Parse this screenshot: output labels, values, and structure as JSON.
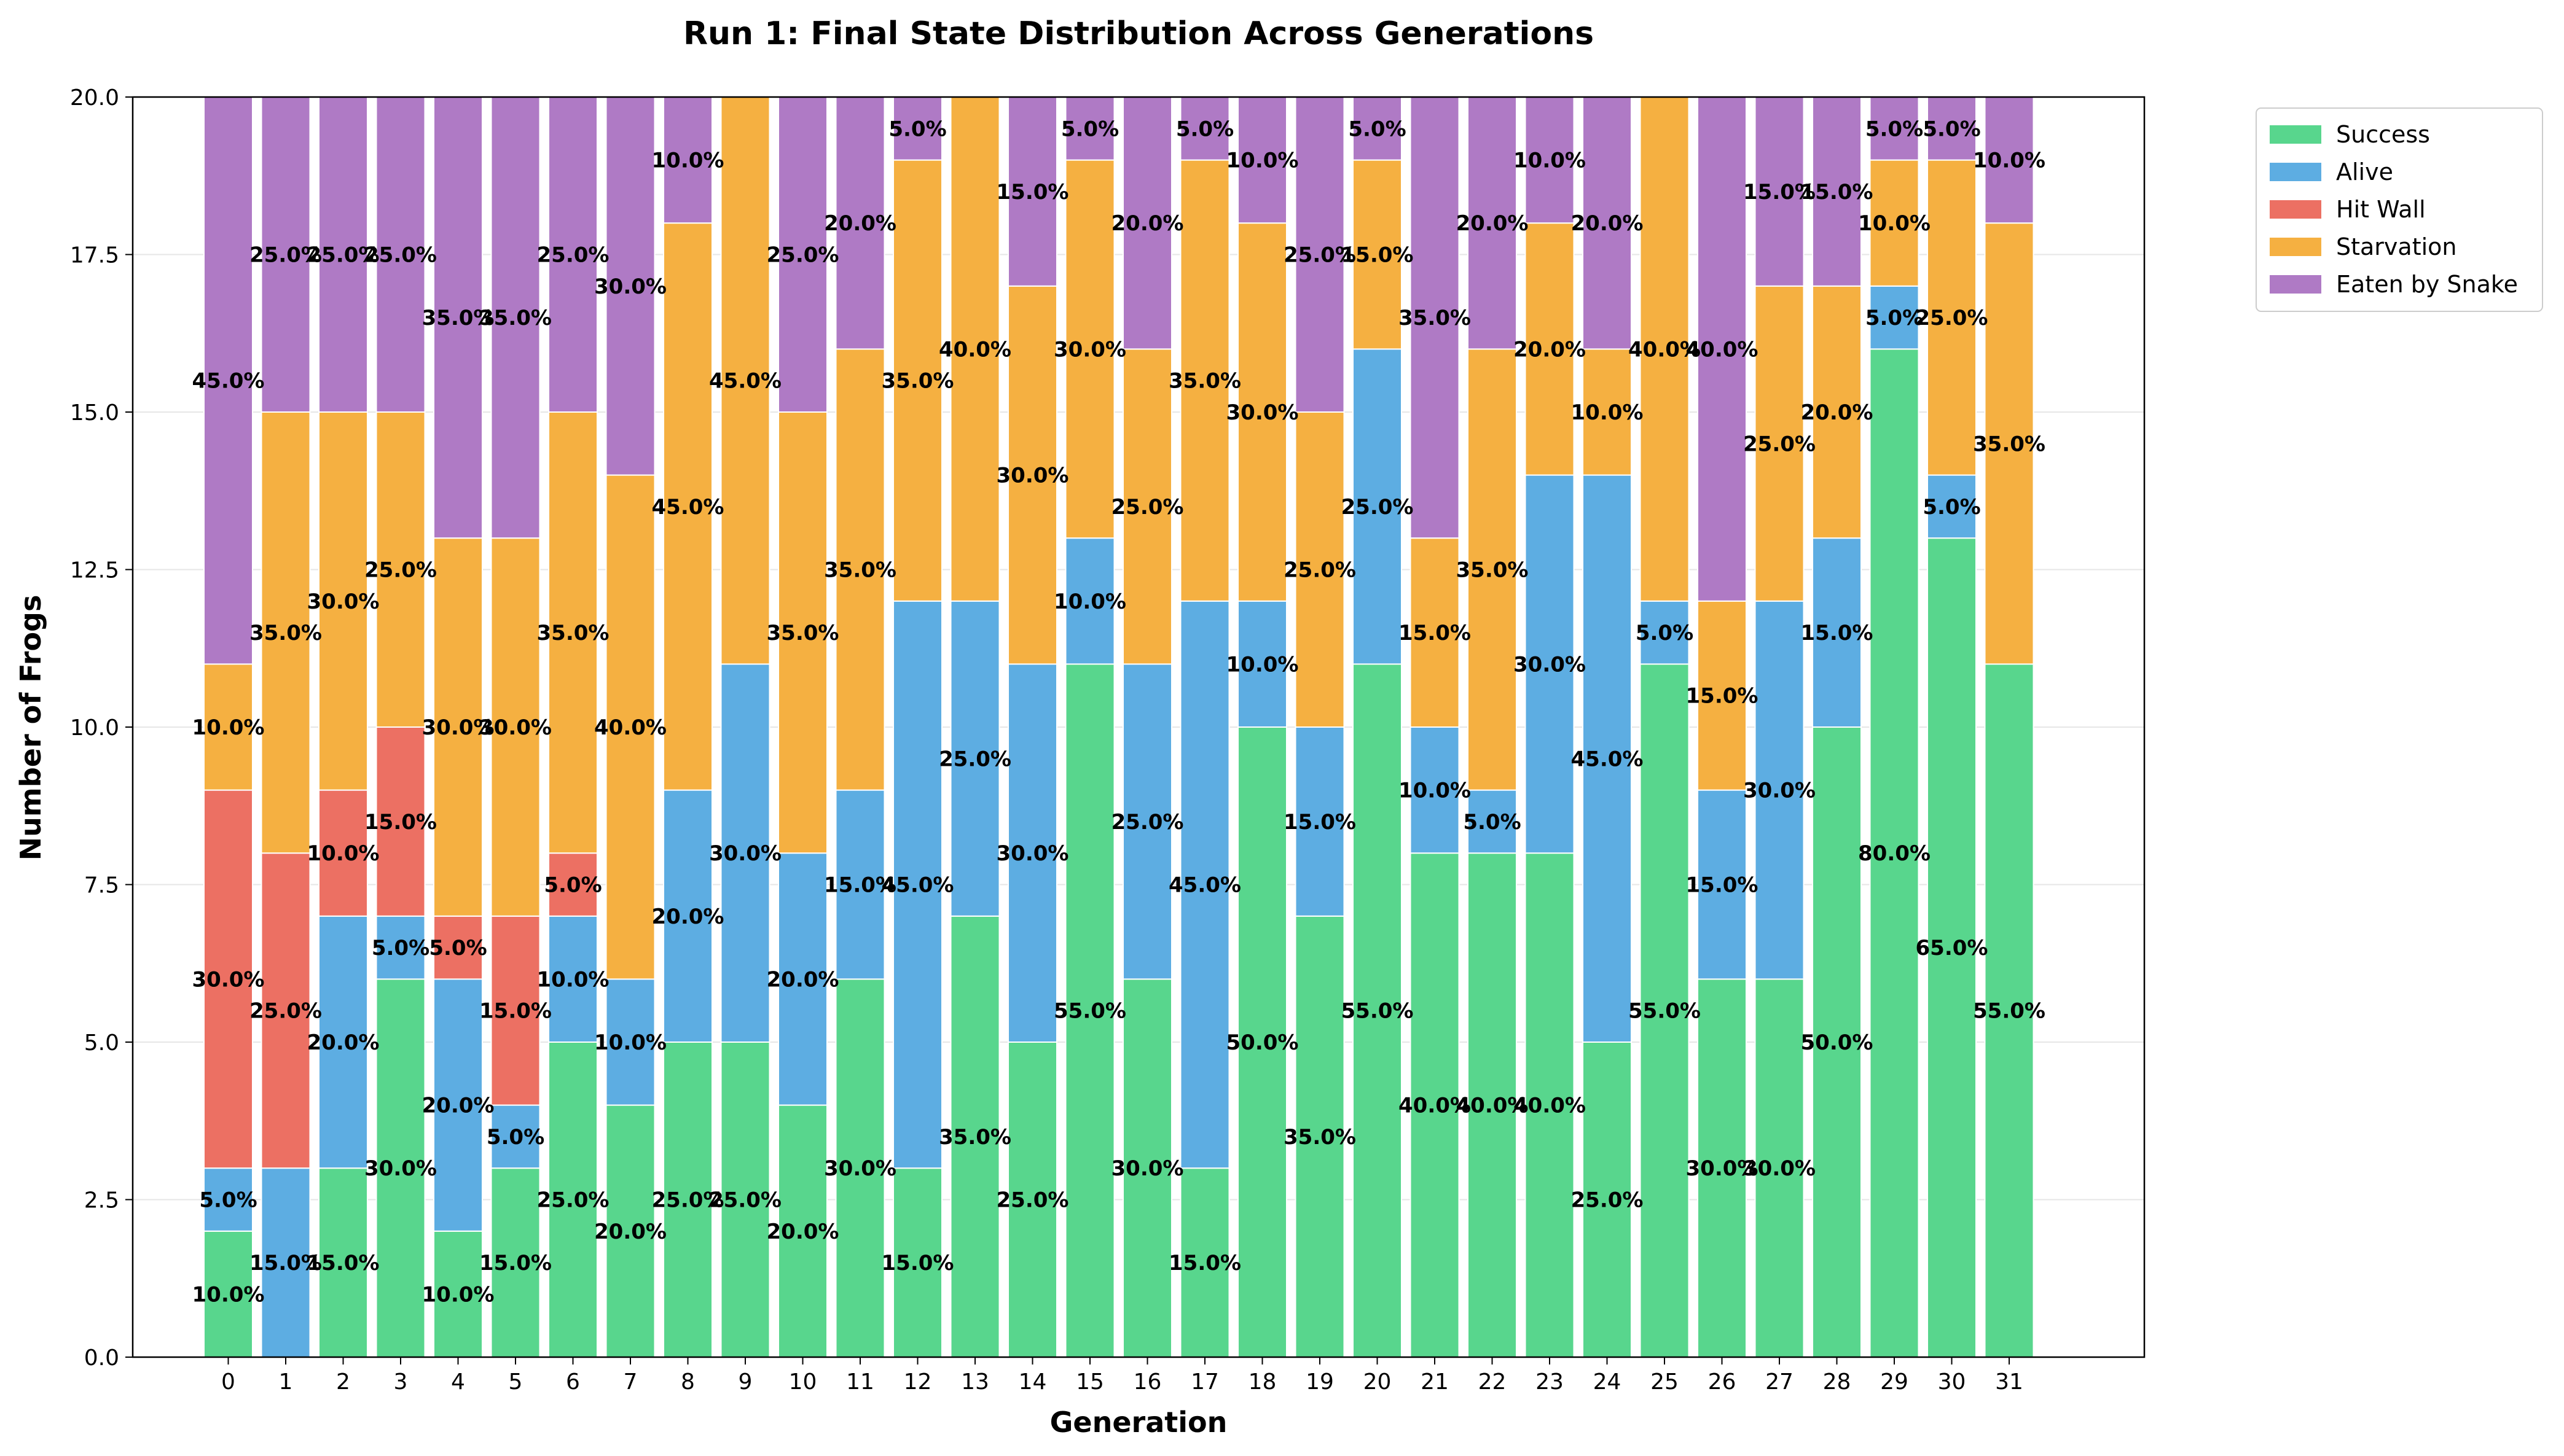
{
  "chart_data": {
    "type": "bar",
    "stacked": true,
    "title": "Run 1: Final State Distribution Across Generations",
    "xlabel": "Generation",
    "ylabel": "Number of Frogs",
    "ylim": [
      0,
      20
    ],
    "yticks": [
      "0.0",
      "2.5",
      "5.0",
      "7.5",
      "10.0",
      "12.5",
      "15.0",
      "17.5",
      "20.0"
    ],
    "ytick_values": [
      0,
      2.5,
      5,
      7.5,
      10,
      12.5,
      15,
      17.5,
      20
    ],
    "grid": "horizontal",
    "legend_position": "outside-top-right",
    "categories": [
      "0",
      "1",
      "2",
      "3",
      "4",
      "5",
      "6",
      "7",
      "8",
      "9",
      "10",
      "11",
      "12",
      "13",
      "14",
      "15",
      "16",
      "17",
      "18",
      "19",
      "20",
      "21",
      "22",
      "23",
      "24",
      "25",
      "26",
      "27",
      "28",
      "29",
      "30",
      "31"
    ],
    "series": [
      {
        "name": "Success",
        "color": "#58d68d",
        "values": [
          2,
          0,
          3,
          6,
          2,
          3,
          5,
          4,
          5,
          5,
          4,
          6,
          3,
          7,
          5,
          11,
          6,
          3,
          10,
          7,
          11,
          8,
          8,
          8,
          5,
          11,
          6,
          6,
          10,
          16,
          13,
          11
        ],
        "labels": [
          "10.0%",
          "",
          "15.0%",
          "30.0%",
          "10.0%",
          "15.0%",
          "25.0%",
          "20.0%",
          "25.0%",
          "25.0%",
          "20.0%",
          "30.0%",
          "15.0%",
          "35.0%",
          "25.0%",
          "55.0%",
          "30.0%",
          "15.0%",
          "50.0%",
          "35.0%",
          "55.0%",
          "40.0%",
          "40.0%",
          "40.0%",
          "25.0%",
          "55.0%",
          "30.0%",
          "30.0%",
          "50.0%",
          "80.0%",
          "65.0%",
          "55.0%"
        ]
      },
      {
        "name": "Alive",
        "color": "#5dade2",
        "values": [
          1,
          3,
          4,
          1,
          4,
          1,
          2,
          2,
          4,
          6,
          4,
          3,
          9,
          5,
          6,
          2,
          5,
          9,
          2,
          3,
          5,
          2,
          1,
          6,
          9,
          1,
          3,
          6,
          3,
          1,
          1,
          0
        ],
        "labels": [
          "5.0%",
          "15.0%",
          "20.0%",
          "5.0%",
          "20.0%",
          "5.0%",
          "10.0%",
          "10.0%",
          "20.0%",
          "30.0%",
          "20.0%",
          "15.0%",
          "45.0%",
          "25.0%",
          "30.0%",
          "10.0%",
          "25.0%",
          "45.0%",
          "10.0%",
          "15.0%",
          "25.0%",
          "10.0%",
          "5.0%",
          "30.0%",
          "45.0%",
          "5.0%",
          "15.0%",
          "30.0%",
          "15.0%",
          "5.0%",
          "5.0%",
          ""
        ]
      },
      {
        "name": "Hit Wall",
        "color": "#ec7063",
        "values": [
          6,
          5,
          2,
          3,
          1,
          3,
          1,
          0,
          0,
          0,
          0,
          0,
          0,
          0,
          0,
          0,
          0,
          0,
          0,
          0,
          0,
          0,
          0,
          0,
          0,
          0,
          0,
          0,
          0,
          0,
          0,
          0
        ],
        "labels": [
          "30.0%",
          "25.0%",
          "10.0%",
          "15.0%",
          "5.0%",
          "15.0%",
          "5.0%",
          "",
          "",
          "",
          "",
          "",
          "",
          "",
          "",
          "",
          "",
          "",
          "",
          "",
          "",
          "",
          "",
          "",
          "",
          "",
          "",
          "",
          "",
          "",
          "",
          ""
        ]
      },
      {
        "name": "Starvation",
        "color": "#f5b041",
        "values": [
          2,
          7,
          6,
          5,
          6,
          6,
          7,
          8,
          9,
          9,
          7,
          7,
          7,
          8,
          6,
          6,
          5,
          7,
          6,
          5,
          3,
          3,
          7,
          4,
          2,
          8,
          3,
          5,
          4,
          2,
          5,
          7
        ],
        "labels": [
          "10.0%",
          "35.0%",
          "30.0%",
          "25.0%",
          "30.0%",
          "30.0%",
          "35.0%",
          "40.0%",
          "45.0%",
          "45.0%",
          "35.0%",
          "35.0%",
          "35.0%",
          "40.0%",
          "30.0%",
          "30.0%",
          "25.0%",
          "35.0%",
          "30.0%",
          "25.0%",
          "15.0%",
          "15.0%",
          "35.0%",
          "20.0%",
          "10.0%",
          "40.0%",
          "15.0%",
          "25.0%",
          "20.0%",
          "10.0%",
          "25.0%",
          "35.0%"
        ]
      },
      {
        "name": "Eaten by Snake",
        "color": "#af7ac5",
        "values": [
          9,
          5,
          5,
          5,
          7,
          7,
          5,
          6,
          2,
          0,
          5,
          4,
          1,
          0,
          3,
          1,
          4,
          1,
          2,
          5,
          1,
          7,
          4,
          2,
          4,
          0,
          8,
          3,
          3,
          1,
          1,
          2
        ],
        "labels": [
          "45.0%",
          "25.0%",
          "25.0%",
          "25.0%",
          "35.0%",
          "35.0%",
          "25.0%",
          "30.0%",
          "10.0%",
          "",
          "25.0%",
          "20.0%",
          "5.0%",
          "",
          "15.0%",
          "5.0%",
          "20.0%",
          "5.0%",
          "10.0%",
          "25.0%",
          "5.0%",
          "35.0%",
          "20.0%",
          "10.0%",
          "20.0%",
          "",
          "40.0%",
          "15.0%",
          "15.0%",
          "5.0%",
          "5.0%",
          "10.0%"
        ]
      }
    ]
  }
}
